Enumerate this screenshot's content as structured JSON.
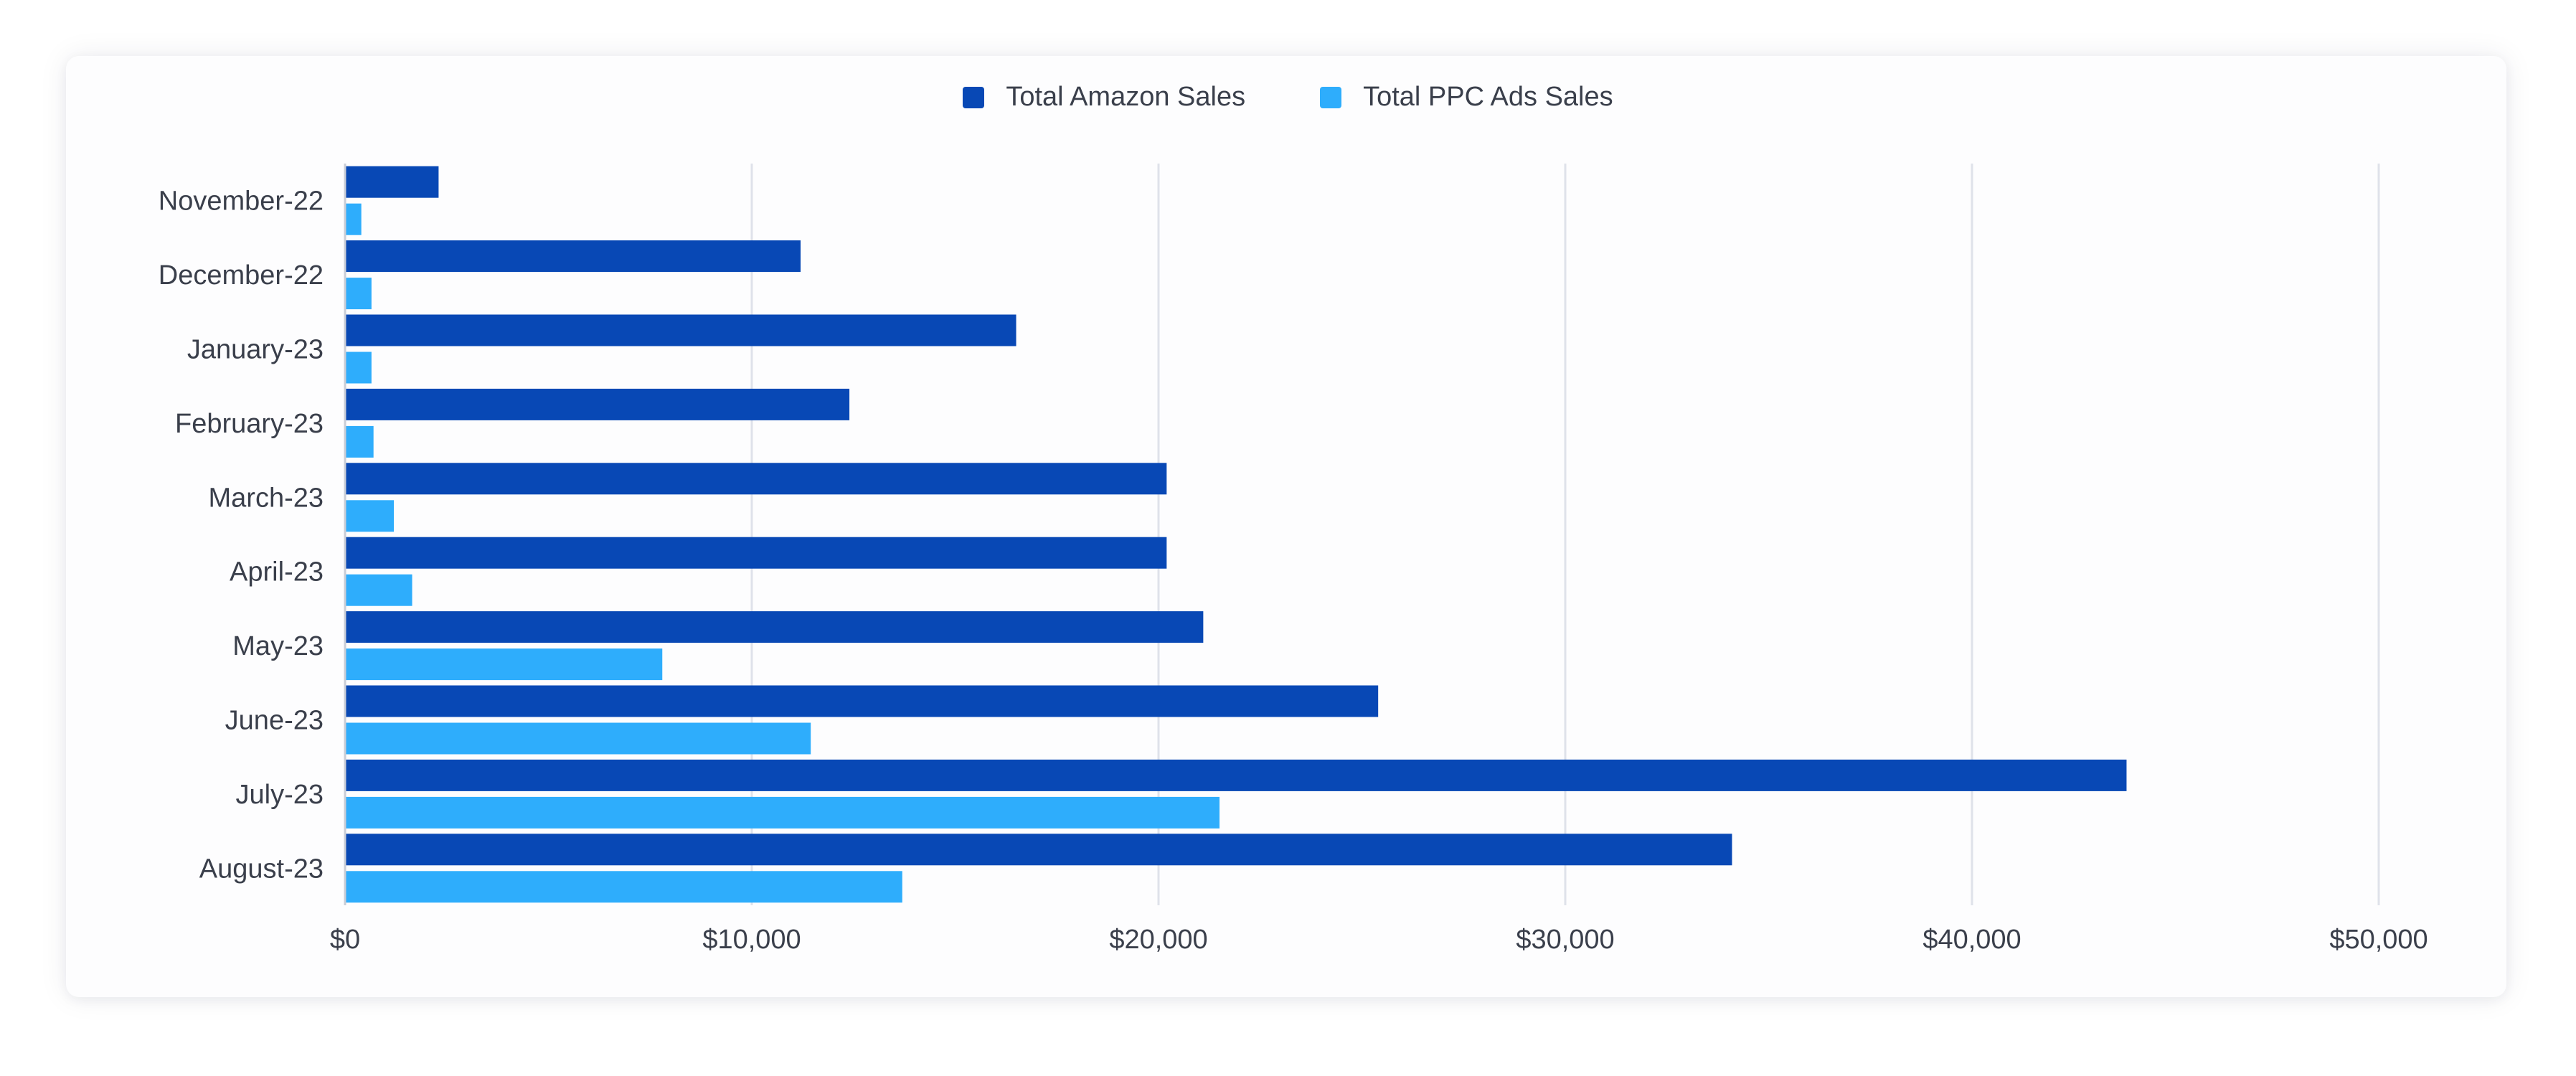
{
  "chart_data": {
    "type": "bar",
    "orientation": "horizontal",
    "categories": [
      "November-22",
      "December-22",
      "January-23",
      "February-23",
      "March-23",
      "April-23",
      "May-23",
      "June-23",
      "July-23",
      "August-23"
    ],
    "series": [
      {
        "name": "Total Amazon Sales",
        "color": "#0848b5",
        "values": [
          2300,
          11200,
          16500,
          12400,
          20200,
          20200,
          21100,
          25400,
          43800,
          34100
        ]
      },
      {
        "name": "Total PPC Ads Sales",
        "color": "#2eadfc",
        "values": [
          400,
          650,
          650,
          700,
          1200,
          1650,
          7800,
          11450,
          21500,
          13700
        ]
      }
    ],
    "xlim": [
      0,
      50000
    ],
    "xticks": [
      {
        "value": 0,
        "label": "$0"
      },
      {
        "value": 10000,
        "label": "$10,000"
      },
      {
        "value": 20000,
        "label": "$20,000"
      },
      {
        "value": 30000,
        "label": "$30,000"
      },
      {
        "value": 40000,
        "label": "$40,000"
      },
      {
        "value": 50000,
        "label": "$50,000"
      }
    ],
    "grid": "vertical",
    "legend_position": "top-center",
    "title": "",
    "xlabel": "",
    "ylabel": ""
  }
}
